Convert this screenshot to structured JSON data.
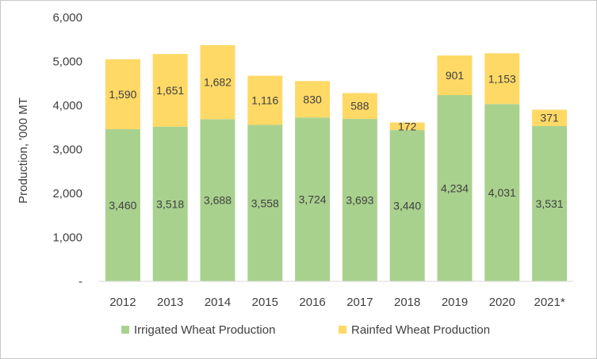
{
  "chart_data": {
    "type": "bar",
    "stacked": true,
    "categories": [
      "2012",
      "2013",
      "2014",
      "2015",
      "2016",
      "2017",
      "2018",
      "2019",
      "2020",
      "2021*"
    ],
    "series": [
      {
        "name": "Irrigated Wheat Production",
        "color": "#a9d18e",
        "values": [
          3460,
          3518,
          3688,
          3558,
          3724,
          3693,
          3440,
          4234,
          4031,
          3531
        ],
        "labels": [
          "3,460",
          "3,518",
          "3,688",
          "3,558",
          "3,724",
          "3,693",
          "3,440",
          "4,234",
          "4,031",
          "3,531"
        ]
      },
      {
        "name": "Rainfed Wheat Production",
        "color": "#ffd966",
        "values": [
          1590,
          1651,
          1682,
          1116,
          830,
          588,
          172,
          901,
          1153,
          371
        ],
        "labels": [
          "1,590",
          "1,651",
          "1,682",
          "1,116",
          "830",
          "588",
          "172",
          "901",
          "1,153",
          "371"
        ]
      }
    ],
    "title": "",
    "xlabel": "",
    "ylabel": "Production, '000 MT",
    "ylim": [
      0,
      6000
    ],
    "yticks": [
      {
        "value": 0,
        "label": "-"
      },
      {
        "value": 1000,
        "label": "1,000"
      },
      {
        "value": 2000,
        "label": "2,000"
      },
      {
        "value": 3000,
        "label": "3,000"
      },
      {
        "value": 4000,
        "label": "4,000"
      },
      {
        "value": 5000,
        "label": "5,000"
      },
      {
        "value": 6000,
        "label": "6,000"
      }
    ],
    "grid": false,
    "legend": "bottom"
  }
}
